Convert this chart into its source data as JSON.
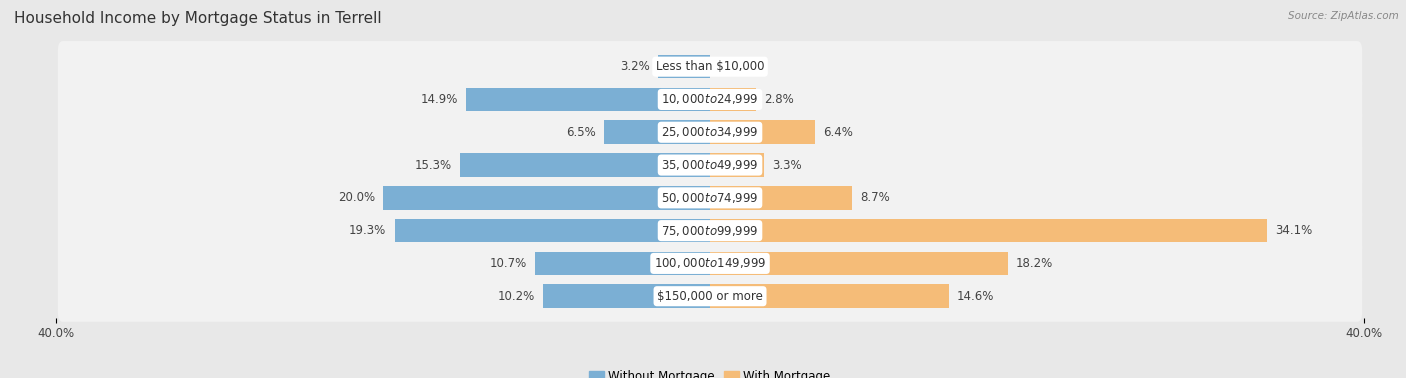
{
  "title": "Household Income by Mortgage Status in Terrell",
  "source": "Source: ZipAtlas.com",
  "categories": [
    "Less than $10,000",
    "$10,000 to $24,999",
    "$25,000 to $34,999",
    "$35,000 to $49,999",
    "$50,000 to $74,999",
    "$75,000 to $99,999",
    "$100,000 to $149,999",
    "$150,000 or more"
  ],
  "without_mortgage": [
    3.2,
    14.9,
    6.5,
    15.3,
    20.0,
    19.3,
    10.7,
    10.2
  ],
  "with_mortgage": [
    0.0,
    2.8,
    6.4,
    3.3,
    8.7,
    34.1,
    18.2,
    14.6
  ],
  "without_mortgage_color": "#7BAFD4",
  "with_mortgage_color": "#F5BC78",
  "axis_limit": 40.0,
  "outer_bg_color": "#e8e8e8",
  "row_bg_color": "#f2f2f2",
  "title_fontsize": 11,
  "label_fontsize": 8.5,
  "tick_fontsize": 8.5,
  "legend_fontsize": 8.5,
  "source_fontsize": 7.5
}
